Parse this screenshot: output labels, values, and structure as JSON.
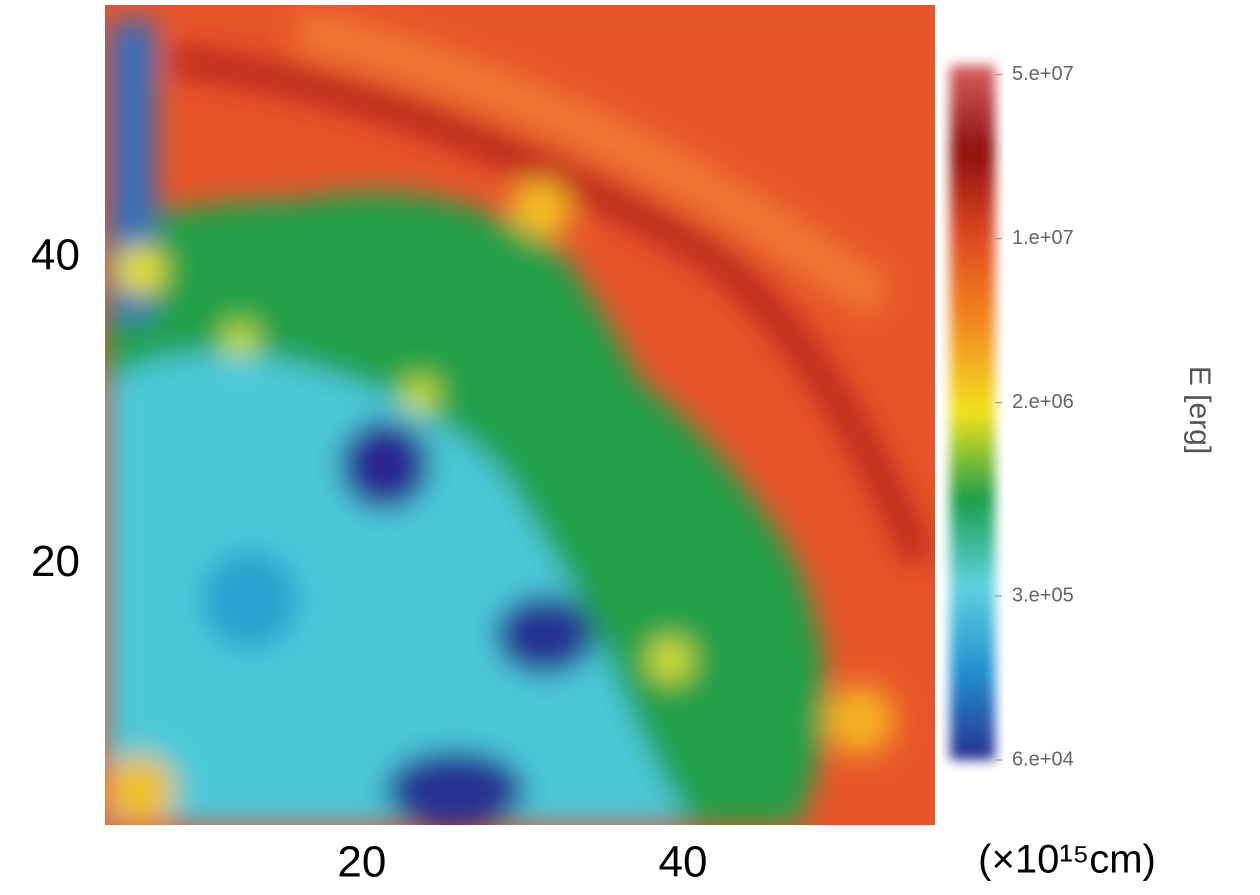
{
  "chart_data": {
    "type": "heatmap",
    "x_unit": "(×10¹⁵cm)",
    "colorbar_label": "E [erg]",
    "xlim": [
      4,
      55.7
    ],
    "ylim": [
      3,
      56.5
    ],
    "xticks": [
      20,
      40
    ],
    "yticks": [
      20,
      40
    ],
    "clim": [
      60000,
      55000000
    ],
    "colorbar_log": true,
    "colormap": [
      "#2a2f8f",
      "#1f8fd0",
      "#5fd0e0",
      "#1a9e4a",
      "#f2e21a",
      "#f28a1e",
      "#e04a20",
      "#8f1010",
      "#d86060"
    ],
    "cticks": [
      {
        "value": 50000000,
        "label": "5.e+07"
      },
      {
        "value": 10000000,
        "label": "1.e+07"
      },
      {
        "value": 2000000,
        "label": "2.e+06"
      },
      {
        "value": 300000,
        "label": "3.e+05"
      },
      {
        "value": 60000,
        "label": "6.e+04"
      }
    ]
  }
}
